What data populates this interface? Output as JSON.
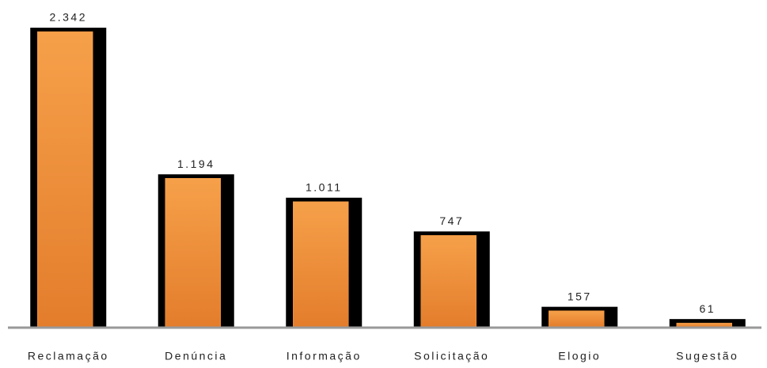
{
  "chart_data": {
    "type": "bar",
    "categories": [
      "Reclamação",
      "Denúncia",
      "Informação",
      "Solicitação",
      "Elogio",
      "Sugestão"
    ],
    "values": [
      2342,
      1194,
      1011,
      747,
      157,
      61
    ],
    "value_labels": [
      "2.342",
      "1.194",
      "1.011",
      "747",
      "157",
      "61"
    ],
    "color": "#f39a3e",
    "ylim": [
      0,
      2400
    ]
  }
}
